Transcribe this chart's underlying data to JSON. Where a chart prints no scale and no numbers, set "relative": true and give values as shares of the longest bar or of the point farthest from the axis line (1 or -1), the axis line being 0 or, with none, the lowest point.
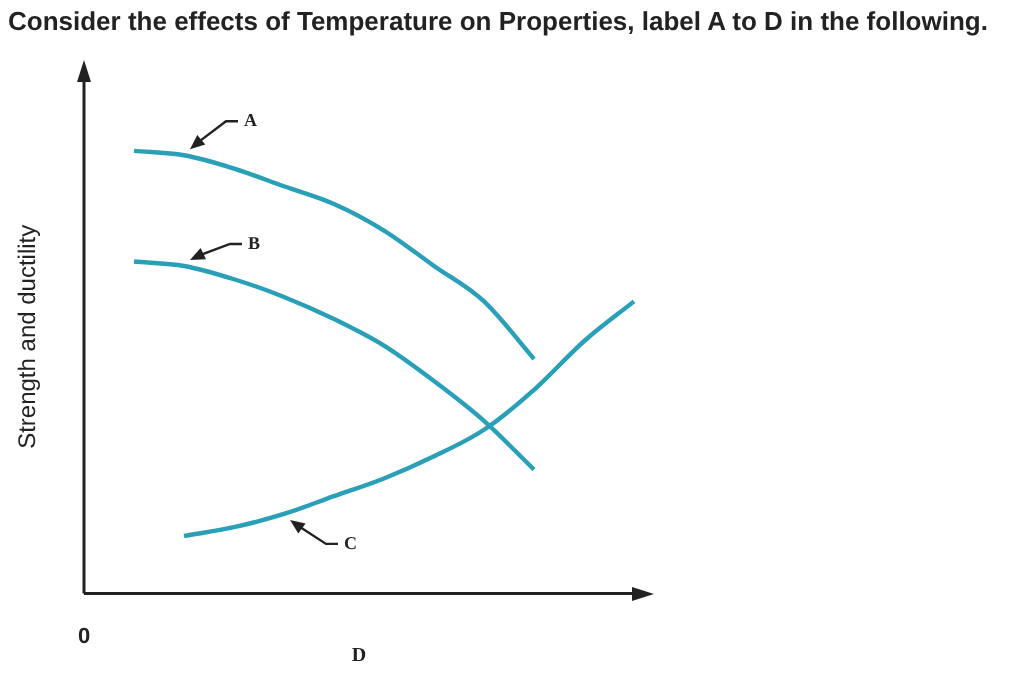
{
  "chart_data": {
    "type": "line",
    "title": "Consider the effects of Temperature on Properties, label A to D in the following.",
    "xlabel": "D",
    "ylabel": "Strength and ductility",
    "relative": true,
    "categories": [
      null,
      null,
      null,
      null,
      null,
      null,
      null,
      null,
      null,
      null,
      null,
      null
    ],
    "series": [
      {
        "color": "#2a9fb8",
        "values": [
          null,
          1.0,
          0.99,
          0.96,
          0.92,
          0.88,
          0.82,
          0.74,
          0.66,
          0.53,
          null,
          null
        ]
      },
      {
        "color": "#2a9fb8",
        "values": [
          null,
          0.75,
          0.74,
          0.71,
          0.67,
          0.62,
          0.56,
          0.48,
          0.39,
          0.28,
          null,
          null
        ]
      },
      {
        "color": "#2a9fb8",
        "values": [
          null,
          null,
          0.13,
          0.15,
          0.18,
          0.22,
          0.26,
          0.31,
          0.37,
          0.46,
          0.57,
          0.66
        ]
      }
    ],
    "annotations": [
      "A",
      "B",
      "C",
      "0"
    ],
    "grid": false,
    "legend": false,
    "marker": "none",
    "line_style": "solid"
  }
}
